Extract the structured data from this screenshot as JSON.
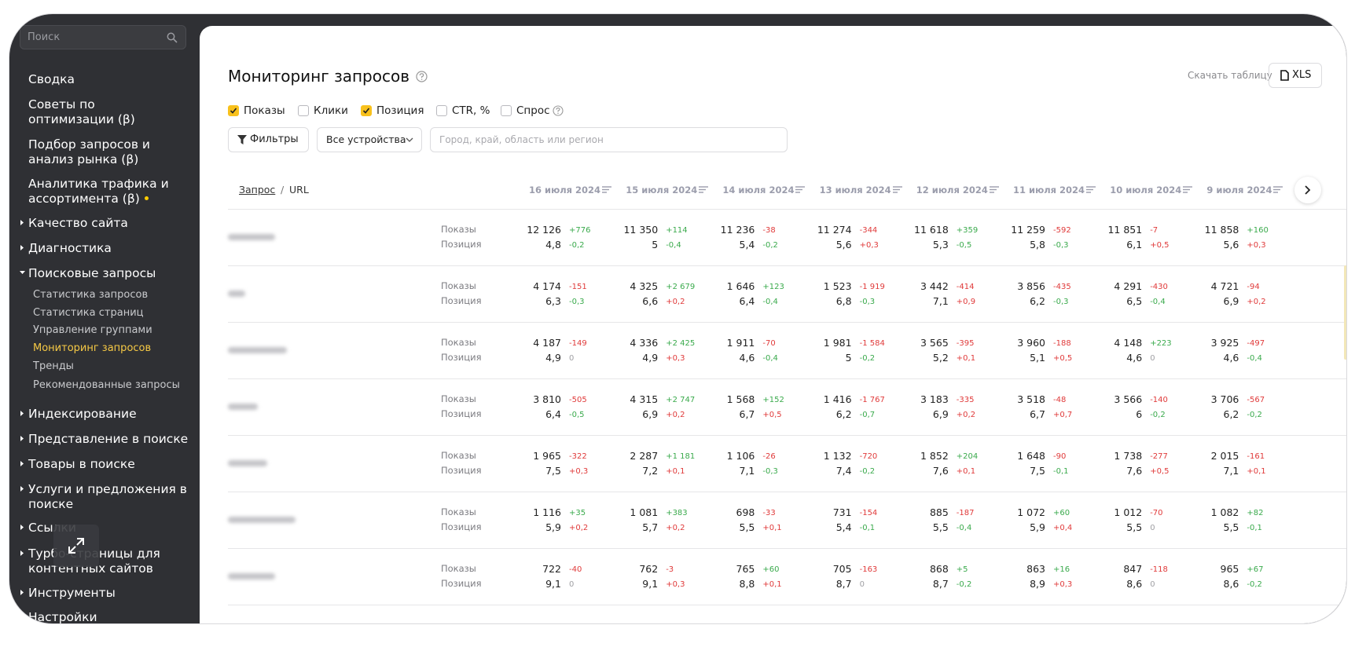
{
  "sidebar": {
    "search_placeholder": "Поиск",
    "items": [
      {
        "lines": [
          "Сводка"
        ]
      },
      {
        "lines": [
          "Советы по",
          "оптимизации (β)"
        ]
      },
      {
        "lines": [
          "Подбор запросов и",
          "анализ рынка (β)"
        ]
      },
      {
        "lines": [
          "Аналитика трафика и",
          "ассортимента (β)"
        ]
      },
      {
        "lines": [
          "Качество сайта"
        ],
        "toggle": "collapsed"
      },
      {
        "lines": [
          "Диагностика"
        ],
        "toggle": "collapsed"
      },
      {
        "lines": [
          "Поисковые запросы"
        ],
        "toggle": "expanded",
        "children": [
          {
            "label": "Статистика запросов"
          },
          {
            "label": "Статистика страниц"
          },
          {
            "label": "Управление группами"
          },
          {
            "label": "Мониторинг запросов",
            "active": true
          },
          {
            "label": "Тренды"
          },
          {
            "label": "Рекомендованные запросы"
          }
        ]
      },
      {
        "lines": [
          "Индексирование"
        ],
        "toggle": "collapsed"
      },
      {
        "lines": [
          "Представление в поиске"
        ],
        "toggle": "collapsed"
      },
      {
        "lines": [
          "Товары в поиске"
        ],
        "toggle": "collapsed"
      },
      {
        "lines": [
          "Услуги и предложения в",
          "поиске"
        ],
        "toggle": "collapsed"
      },
      {
        "lines": [
          "Ссылки"
        ],
        "toggle": "collapsed"
      },
      {
        "lines": [
          "Турбо-страницы для",
          "контентных сайтов"
        ],
        "toggle": "collapsed"
      },
      {
        "lines": [
          "Инструменты"
        ],
        "toggle": "collapsed"
      },
      {
        "lines": [
          "Настройки"
        ]
      }
    ]
  },
  "header": {
    "title": "Мониторинг запросов",
    "download_label": "Скачать таблицу",
    "download_button": "XLS"
  },
  "metric_toggles": [
    {
      "label": "Показы",
      "checked": true
    },
    {
      "label": "Клики",
      "checked": false
    },
    {
      "label": "Позиция",
      "checked": true
    },
    {
      "label": "CTR, %",
      "checked": false
    },
    {
      "label": "Спрос",
      "checked": false
    }
  ],
  "filters": {
    "button": "Фильтры",
    "device": "Все устройства",
    "region_placeholder": "Город, край, область или регион"
  },
  "table": {
    "query_header": "Запрос",
    "separator": "/",
    "url_header": "URL",
    "dates": [
      "16 июля 2024",
      "15 июля 2024",
      "14 июля 2024",
      "13 июля 2024",
      "12 июля 2024",
      "11 июля 2024",
      "10 июля 2024",
      "9 июля 2024"
    ],
    "rows": [
      {
        "metrics": [
          {
            "name": "Показы",
            "cells": [
              [
                "12 126",
                "+776"
              ],
              [
                "11 350",
                "+114"
              ],
              [
                "11 236",
                "-38"
              ],
              [
                "11 274",
                "-344"
              ],
              [
                "11 618",
                "+359"
              ],
              [
                "11 259",
                "-592"
              ],
              [
                "11 851",
                "-7"
              ],
              [
                "11 858",
                "+160"
              ]
            ]
          },
          {
            "name": "Позиция",
            "cells": [
              [
                "4,8",
                "-0,2"
              ],
              [
                "5",
                "-0,4"
              ],
              [
                "5,4",
                "-0,2"
              ],
              [
                "5,6",
                "+0,3"
              ],
              [
                "5,3",
                "-0,5"
              ],
              [
                "5,8",
                "-0,3"
              ],
              [
                "6,1",
                "+0,5"
              ],
              [
                "5,6",
                "+0,3"
              ]
            ]
          }
        ]
      },
      {
        "metrics": [
          {
            "name": "Показы",
            "cells": [
              [
                "4 174",
                "-151"
              ],
              [
                "4 325",
                "+2 679"
              ],
              [
                "1 646",
                "+123"
              ],
              [
                "1 523",
                "-1 919"
              ],
              [
                "3 442",
                "-414"
              ],
              [
                "3 856",
                "-435"
              ],
              [
                "4 291",
                "-430"
              ],
              [
                "4 721",
                "-94"
              ]
            ]
          },
          {
            "name": "Позиция",
            "cells": [
              [
                "6,3",
                "-0,3"
              ],
              [
                "6,6",
                "+0,2"
              ],
              [
                "6,4",
                "-0,4"
              ],
              [
                "6,8",
                "-0,3"
              ],
              [
                "7,1",
                "+0,9"
              ],
              [
                "6,2",
                "-0,3"
              ],
              [
                "6,5",
                "-0,4"
              ],
              [
                "6,9",
                "+0,2"
              ]
            ]
          }
        ]
      },
      {
        "metrics": [
          {
            "name": "Показы",
            "cells": [
              [
                "4 187",
                "-149"
              ],
              [
                "4 336",
                "+2 425"
              ],
              [
                "1 911",
                "-70"
              ],
              [
                "1 981",
                "-1 584"
              ],
              [
                "3 565",
                "-395"
              ],
              [
                "3 960",
                "-188"
              ],
              [
                "4 148",
                "+223"
              ],
              [
                "3 925",
                "-497"
              ]
            ]
          },
          {
            "name": "Позиция",
            "cells": [
              [
                "4,9",
                "0"
              ],
              [
                "4,9",
                "+0,3"
              ],
              [
                "4,6",
                "-0,4"
              ],
              [
                "5",
                "-0,2"
              ],
              [
                "5,2",
                "+0,1"
              ],
              [
                "5,1",
                "+0,5"
              ],
              [
                "4,6",
                "0"
              ],
              [
                "4,6",
                "-0,4"
              ]
            ]
          }
        ]
      },
      {
        "metrics": [
          {
            "name": "Показы",
            "cells": [
              [
                "3 810",
                "-505"
              ],
              [
                "4 315",
                "+2 747"
              ],
              [
                "1 568",
                "+152"
              ],
              [
                "1 416",
                "-1 767"
              ],
              [
                "3 183",
                "-335"
              ],
              [
                "3 518",
                "-48"
              ],
              [
                "3 566",
                "-140"
              ],
              [
                "3 706",
                "-567"
              ]
            ]
          },
          {
            "name": "Позиция",
            "cells": [
              [
                "6,4",
                "-0,5"
              ],
              [
                "6,9",
                "+0,2"
              ],
              [
                "6,7",
                "+0,5"
              ],
              [
                "6,2",
                "-0,7"
              ],
              [
                "6,9",
                "+0,2"
              ],
              [
                "6,7",
                "+0,7"
              ],
              [
                "6",
                "-0,2"
              ],
              [
                "6,2",
                "-0,2"
              ]
            ]
          }
        ]
      },
      {
        "metrics": [
          {
            "name": "Показы",
            "cells": [
              [
                "1 965",
                "-322"
              ],
              [
                "2 287",
                "+1 181"
              ],
              [
                "1 106",
                "-26"
              ],
              [
                "1 132",
                "-720"
              ],
              [
                "1 852",
                "+204"
              ],
              [
                "1 648",
                "-90"
              ],
              [
                "1 738",
                "-277"
              ],
              [
                "2 015",
                "-161"
              ]
            ]
          },
          {
            "name": "Позиция",
            "cells": [
              [
                "7,5",
                "+0,3"
              ],
              [
                "7,2",
                "+0,1"
              ],
              [
                "7,1",
                "-0,3"
              ],
              [
                "7,4",
                "-0,2"
              ],
              [
                "7,6",
                "+0,1"
              ],
              [
                "7,5",
                "-0,1"
              ],
              [
                "7,6",
                "+0,5"
              ],
              [
                "7,1",
                "+0,1"
              ]
            ]
          }
        ]
      },
      {
        "metrics": [
          {
            "name": "Показы",
            "cells": [
              [
                "1 116",
                "+35"
              ],
              [
                "1 081",
                "+383"
              ],
              [
                "698",
                "-33"
              ],
              [
                "731",
                "-154"
              ],
              [
                "885",
                "-187"
              ],
              [
                "1 072",
                "+60"
              ],
              [
                "1 012",
                "-70"
              ],
              [
                "1 082",
                "+82"
              ]
            ]
          },
          {
            "name": "Позиция",
            "cells": [
              [
                "5,9",
                "+0,2"
              ],
              [
                "5,7",
                "+0,2"
              ],
              [
                "5,5",
                "+0,1"
              ],
              [
                "5,4",
                "-0,1"
              ],
              [
                "5,5",
                "-0,4"
              ],
              [
                "5,9",
                "+0,4"
              ],
              [
                "5,5",
                "0"
              ],
              [
                "5,5",
                "-0,1"
              ]
            ]
          }
        ]
      },
      {
        "metrics": [
          {
            "name": "Показы",
            "cells": [
              [
                "722",
                "-40"
              ],
              [
                "762",
                "-3"
              ],
              [
                "765",
                "+60"
              ],
              [
                "705",
                "-163"
              ],
              [
                "868",
                "+5"
              ],
              [
                "863",
                "+16"
              ],
              [
                "847",
                "-118"
              ],
              [
                "965",
                "+67"
              ]
            ]
          },
          {
            "name": "Позиция",
            "cells": [
              [
                "9,1",
                "0"
              ],
              [
                "9,1",
                "+0,3"
              ],
              [
                "8,8",
                "+0,1"
              ],
              [
                "8,7",
                "0"
              ],
              [
                "8,7",
                "-0,2"
              ],
              [
                "8,9",
                "+0,3"
              ],
              [
                "8,6",
                "0"
              ],
              [
                "8,6",
                "-0,2"
              ]
            ]
          }
        ]
      }
    ]
  }
}
